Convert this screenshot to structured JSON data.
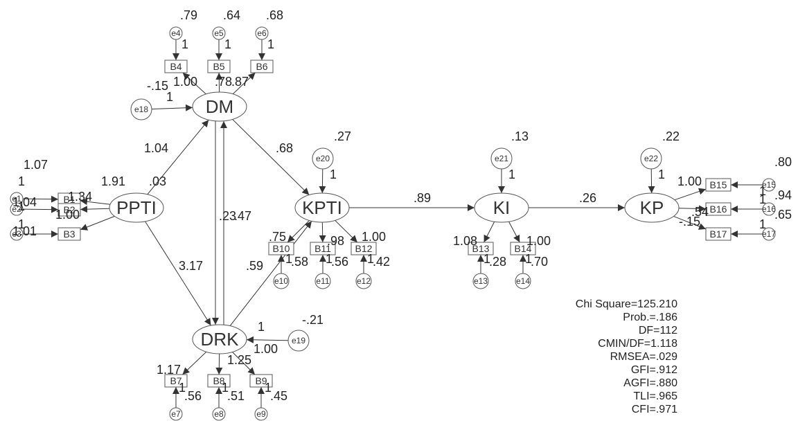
{
  "latents": {
    "DM": "DM",
    "PPTI": "PPTI",
    "KPTI": "KPTI",
    "KI": "KI",
    "KP": "KP",
    "DRK": "DRK"
  },
  "indicators": {
    "B1": "B1",
    "B2": "B2",
    "B3": "B3",
    "B4": "B4",
    "B5": "B5",
    "B6": "B6",
    "B7": "B7",
    "B8": "B8",
    "B9": "B9",
    "B10": "B10",
    "B11": "B11",
    "B12": "B12",
    "B13": "B13",
    "B14": "B14",
    "B15": "B15",
    "B16": "B16",
    "B17": "B17"
  },
  "errors": {
    "e1": "e1",
    "e2": "e2",
    "e3": "e3",
    "e4": "e4",
    "e5": "e5",
    "e6": "e6",
    "e7": "e7",
    "e8": "e8",
    "e9": "e9",
    "e10": "e10",
    "e11": "e11",
    "e12": "e12",
    "e13": "e13",
    "e14": "e14",
    "e15": "e15",
    "e16": "e16",
    "e17": "e17",
    "e18": "e18",
    "e19": "e19",
    "e20": "e20",
    "e21": "e21",
    "e22": "e22"
  },
  "paths": {
    "ppti_dm": "1.04",
    "ppti_drk": "3.17",
    "dm_kpti": ".68",
    "drk_kpti": ".59",
    "dm_drk": ".23",
    "drk_dm": ".47",
    "kpti_ki": ".89",
    "ki_kp": ".26"
  },
  "variances": {
    "e4": ".79",
    "e5": ".64",
    "e6": ".68",
    "e18": "-.15",
    "e20": ".27",
    "e21": ".13",
    "e22": ".22",
    "e19": "-.21",
    "ppti": "1.91",
    "ppti_b": ".03",
    "e1": "1.07",
    "e2": "1.04",
    "e3": "1.01",
    "e15": ".80",
    "e16": ".94",
    "e17": ".65",
    "e10": ".58",
    "e11": ".56",
    "e12": ".42",
    "e13": ".28",
    "e14": ".70",
    "e7": ".56",
    "e8": ".51",
    "e9": ".45"
  },
  "loadings": {
    "dm_b4": "1.00",
    "dm_b6": ".87",
    "dm_b5": ".78",
    "ppti_b1": "1.34",
    "ppti_b2": "1.00",
    "kpti_b10": ".75",
    "kpti_b11": ".98",
    "kpti_b12": "1.00",
    "ki_b13": "1.08",
    "ki_b14": "1.00",
    "kp_b15": "1.00",
    "kp_b16": ".54",
    "kp_b17": "-.15",
    "drk_b7": "1.17",
    "drk_b9": "1.25",
    "drk_e19": "1.00"
  },
  "fixed": "1",
  "stats": [
    "Chi Square=125.210",
    "Prob.=.186",
    "DF=112",
    "CMIN/DF=1.118",
    "RMSEA=.029",
    "GFI=.912",
    "AGFI=.880",
    "TLI=.965",
    "CFI=.971"
  ],
  "colors": {
    "stroke": "#555555",
    "text": "#222222",
    "background": "#ffffff"
  }
}
